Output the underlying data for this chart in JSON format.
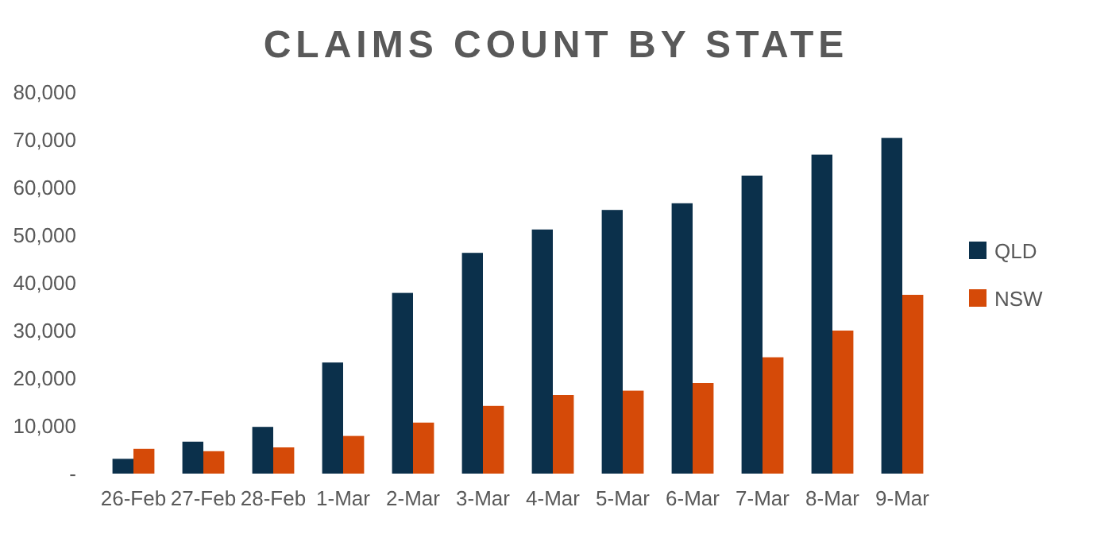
{
  "chart_data": {
    "type": "bar",
    "title": "CLAIMS COUNT BY STATE",
    "categories": [
      "26-Feb",
      "27-Feb",
      "28-Feb",
      "1-Mar",
      "2-Mar",
      "3-Mar",
      "4-Mar",
      "5-Mar",
      "6-Mar",
      "7-Mar",
      "8-Mar",
      "9-Mar"
    ],
    "series": [
      {
        "name": "QLD",
        "color": "#0b304b",
        "values": [
          3100,
          6700,
          9800,
          23300,
          37900,
          46300,
          51200,
          55300,
          56700,
          62500,
          66900,
          70400
        ]
      },
      {
        "name": "NSW",
        "color": "#d54a08",
        "values": [
          5200,
          4700,
          5500,
          7900,
          10700,
          14200,
          16500,
          17400,
          19000,
          24400,
          30000,
          37500
        ]
      }
    ],
    "ylim": [
      0,
      80000
    ],
    "yticks": [
      {
        "value": 0,
        "label": "-"
      },
      {
        "value": 10000,
        "label": "10,000"
      },
      {
        "value": 20000,
        "label": "20,000"
      },
      {
        "value": 30000,
        "label": "30,000"
      },
      {
        "value": 40000,
        "label": "40,000"
      },
      {
        "value": 50000,
        "label": "50,000"
      },
      {
        "value": 60000,
        "label": "60,000"
      },
      {
        "value": 70000,
        "label": "70,000"
      },
      {
        "value": 80000,
        "label": "80,000"
      }
    ],
    "grid": false,
    "legend": "right"
  }
}
